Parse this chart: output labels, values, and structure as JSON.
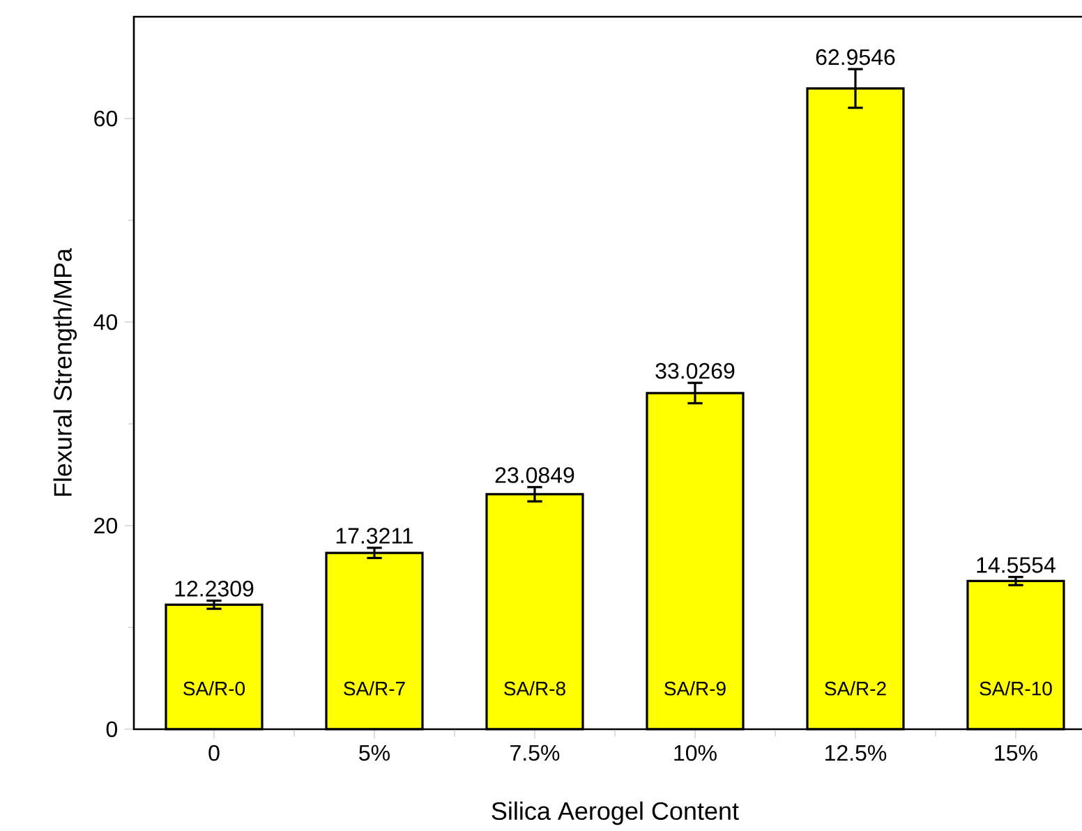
{
  "chart_data": {
    "type": "bar",
    "xlabel": "Silica Aerogel Content",
    "ylabel": "Flexural Strength/MPa",
    "categories": [
      "0",
      "5%",
      "7.5%",
      "10%",
      "12.5%",
      "15%"
    ],
    "values": [
      12.2309,
      17.3211,
      23.0849,
      33.0269,
      62.9546,
      14.5554
    ],
    "errors": [
      0.4,
      0.5,
      0.7,
      1.0,
      1.9,
      0.4
    ],
    "color": "#ffff00",
    "data_labels": true,
    "ylim": [
      0,
      70
    ],
    "yticks": [
      0,
      20,
      40,
      60
    ],
    "annotations": [
      "SA/R-0",
      "SA/R-7",
      "SA/R-8",
      "SA/R-9",
      "SA/R-2",
      "SA/R-10"
    ]
  }
}
